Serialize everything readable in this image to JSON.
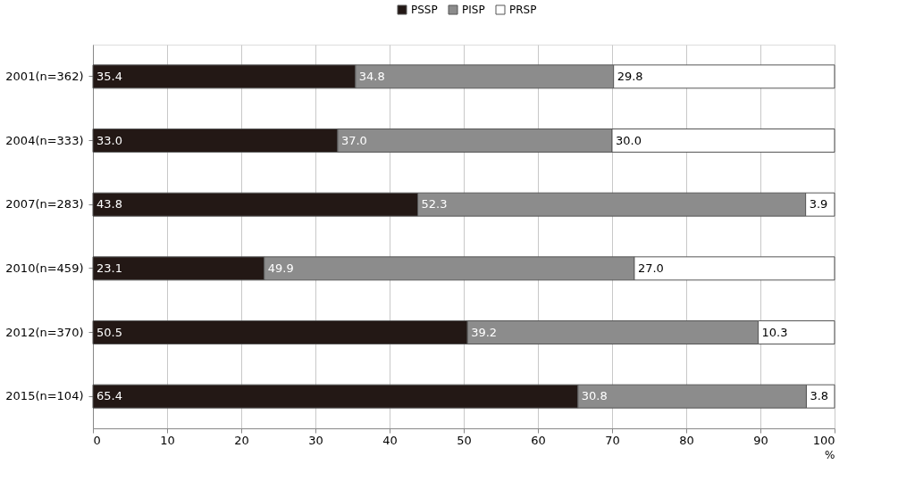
{
  "chart_data": {
    "type": "bar",
    "orientation": "horizontal",
    "stacked": true,
    "categories": [
      "2001(n=362)",
      "2004(n=333)",
      "2007(n=283)",
      "2010(n=459)",
      "2012(n=370)",
      "2015(n=104)"
    ],
    "series": [
      {
        "name": "PSSP",
        "color": "#231815",
        "values": [
          35.4,
          33.0,
          43.8,
          23.1,
          50.5,
          65.4
        ]
      },
      {
        "name": "PISP",
        "color": "#8c8c8c",
        "values": [
          34.8,
          37.0,
          52.3,
          49.9,
          39.2,
          30.8
        ]
      },
      {
        "name": "PRSP",
        "color": "#ffffff",
        "values": [
          29.8,
          30.0,
          3.9,
          27.0,
          10.3,
          3.8
        ]
      }
    ],
    "value_labels": [
      [
        "35.4",
        "33.0",
        "43.8",
        "23.1",
        "50.5",
        "65.4"
      ],
      [
        "34.8",
        "37.0",
        "52.3",
        "49.9",
        "39.2",
        "30.8"
      ],
      [
        "29.8",
        "30.0",
        "3.9",
        "27.0",
        "10.3",
        "3.8"
      ]
    ],
    "xlim": [
      0,
      100
    ],
    "xticks": [
      0,
      10,
      20,
      30,
      40,
      50,
      60,
      70,
      80,
      90,
      100
    ],
    "xlabel": "%",
    "grid": "x",
    "legend": "top"
  }
}
